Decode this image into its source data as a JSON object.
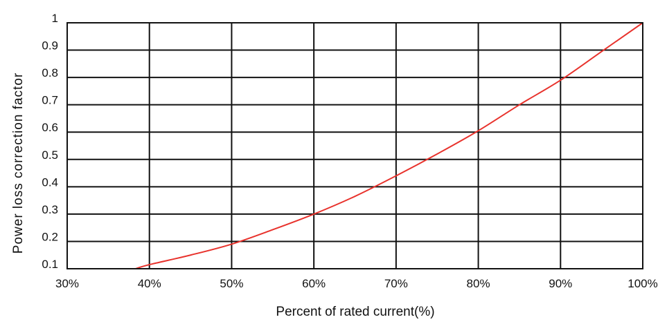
{
  "chart_data": {
    "type": "line",
    "title": "",
    "xlabel": "Percent of rated current(%)",
    "ylabel": "Power loss correction factor",
    "x_ticks": [
      30,
      40,
      50,
      60,
      70,
      80,
      90,
      100
    ],
    "x_tick_labels": [
      "30%",
      "40%",
      "50%",
      "60%",
      "70%",
      "80%",
      "90%",
      "100%"
    ],
    "y_ticks": [
      0.1,
      0.2,
      0.3,
      0.4,
      0.5,
      0.6,
      0.7,
      0.8,
      0.9,
      1
    ],
    "y_tick_labels": [
      "0.1",
      "0.2",
      "0.3",
      "0.4",
      "0.5",
      "0.6",
      "0.7",
      "0.8",
      "0.9",
      "1"
    ],
    "xlim": [
      30,
      100
    ],
    "ylim": [
      0.1,
      1
    ],
    "grid": true,
    "legend": "none",
    "series": [
      {
        "color": "#e8322c",
        "x": [
          38.3,
          40,
          45,
          50,
          55,
          60,
          65,
          70,
          75,
          80,
          85,
          90,
          95,
          100
        ],
        "y": [
          0.1,
          0.115,
          0.15,
          0.19,
          0.243,
          0.3,
          0.365,
          0.44,
          0.52,
          0.605,
          0.7,
          0.79,
          0.895,
          1.0
        ]
      }
    ]
  }
}
